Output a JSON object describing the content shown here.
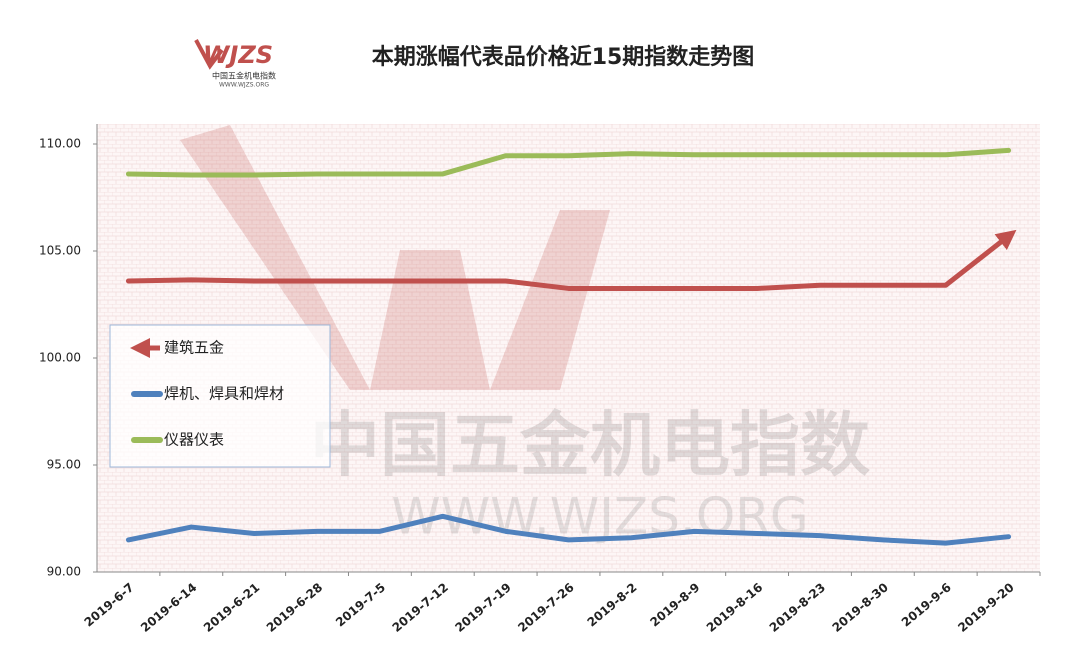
{
  "logo": {
    "mark": "WJZS",
    "name": "中国五金机电指数",
    "url": "WWW.WJZS.ORG"
  },
  "chart_data": {
    "type": "line",
    "title": "本期涨幅代表品价格近15期指数走势图",
    "categories": [
      "2019-6-7",
      "2019-6-14",
      "2019-6-21",
      "2019-6-28",
      "2019-7-5",
      "2019-7-12",
      "2019-7-19",
      "2019-7-26",
      "2019-8-2",
      "2019-8-9",
      "2019-8-16",
      "2019-8-23",
      "2019-8-30",
      "2019-9-6",
      "2019-9-20"
    ],
    "series": [
      {
        "name": "建筑五金",
        "color": "#c0504d",
        "line_end": "arrow",
        "values": [
          103.6,
          103.65,
          103.6,
          103.6,
          103.6,
          103.6,
          103.6,
          103.25,
          103.25,
          103.25,
          103.25,
          103.4,
          103.4,
          103.4,
          105.7
        ]
      },
      {
        "name": "焊机、焊具和焊材",
        "color": "#4f81bd",
        "values": [
          91.5,
          92.1,
          91.8,
          91.9,
          91.9,
          92.6,
          91.9,
          91.5,
          91.6,
          91.9,
          91.8,
          91.7,
          91.5,
          91.35,
          91.65
        ]
      },
      {
        "name": "仪器仪表",
        "color": "#9bbb59",
        "values": [
          108.6,
          108.55,
          108.55,
          108.6,
          108.6,
          108.6,
          109.45,
          109.45,
          109.55,
          109.5,
          109.5,
          109.5,
          109.5,
          109.5,
          109.7
        ]
      }
    ],
    "ylim": [
      90,
      110
    ],
    "yticks": [
      {
        "value": 90,
        "label": "90.00"
      },
      {
        "value": 95,
        "label": "95.00"
      },
      {
        "value": 100,
        "label": "100.00"
      },
      {
        "value": 105,
        "label": "105.00"
      },
      {
        "value": 110,
        "label": "110.00"
      }
    ],
    "legend": "left"
  }
}
